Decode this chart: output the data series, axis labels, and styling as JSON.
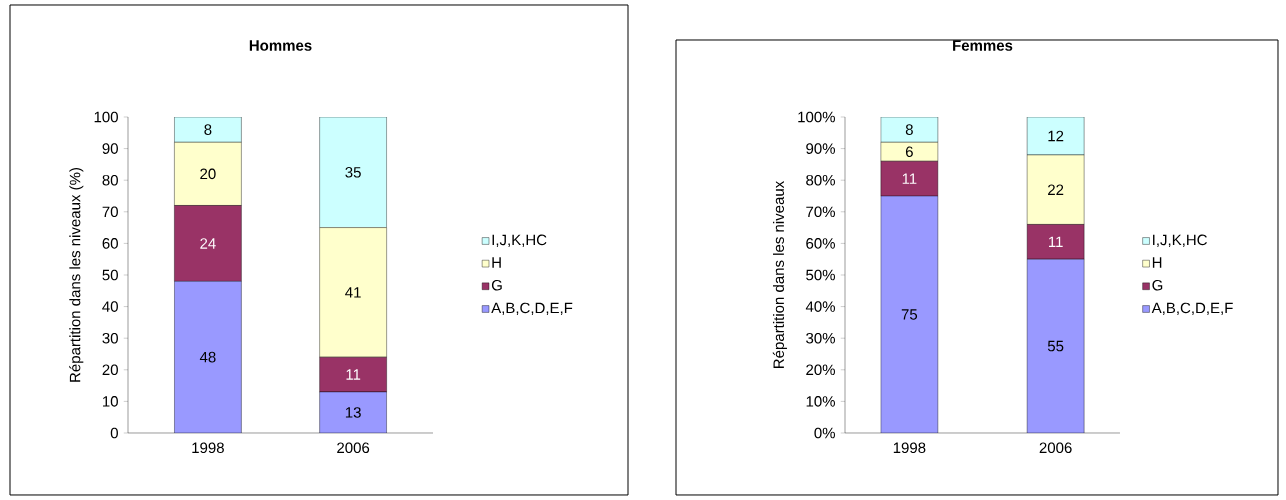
{
  "chart_data": [
    {
      "type": "bar",
      "stacked": true,
      "title": "Hommes",
      "ylabel": "Répartition dans les niveaux (%)",
      "categories": [
        "1998",
        "2006"
      ],
      "ylim": [
        0,
        100
      ],
      "yticks": [
        0,
        10,
        20,
        30,
        40,
        50,
        60,
        70,
        80,
        90,
        100
      ],
      "legend": "right",
      "data_labels": true,
      "series": [
        {
          "name": "A,B,C,D,E,F",
          "color": "#9999ff",
          "values": [
            48,
            13
          ]
        },
        {
          "name": "G",
          "color": "#993366",
          "values": [
            24,
            11
          ]
        },
        {
          "name": "H",
          "color": "#ffffcc",
          "values": [
            20,
            41
          ]
        },
        {
          "name": "I,J,K,HC",
          "color": "#ccffff",
          "values": [
            8,
            35
          ]
        }
      ]
    },
    {
      "type": "bar",
      "stacked": true,
      "title": "Femmes",
      "ylabel": "Répartition dans les niveaux",
      "categories": [
        "1998",
        "2006"
      ],
      "ylim": [
        0,
        100
      ],
      "yticks": [
        {
          "value": 0,
          "label": "0%"
        },
        {
          "value": 10,
          "label": "10%"
        },
        {
          "value": 20,
          "label": "20%"
        },
        {
          "value": 30,
          "label": "30%"
        },
        {
          "value": 40,
          "label": "40%"
        },
        {
          "value": 50,
          "label": "50%"
        },
        {
          "value": 60,
          "label": "60%"
        },
        {
          "value": 70,
          "label": "70%"
        },
        {
          "value": 80,
          "label": "80%"
        },
        {
          "value": 90,
          "label": "90%"
        },
        {
          "value": 100,
          "label": "100%"
        }
      ],
      "legend": "right",
      "data_labels": true,
      "series": [
        {
          "name": "A,B,C,D,E,F",
          "color": "#9999ff",
          "values": [
            75,
            55
          ]
        },
        {
          "name": "G",
          "color": "#993366",
          "values": [
            11,
            11
          ]
        },
        {
          "name": "H",
          "color": "#ffffcc",
          "values": [
            6,
            22
          ]
        },
        {
          "name": "I,J,K,HC",
          "color": "#ccffff",
          "values": [
            8,
            12
          ]
        }
      ]
    }
  ]
}
